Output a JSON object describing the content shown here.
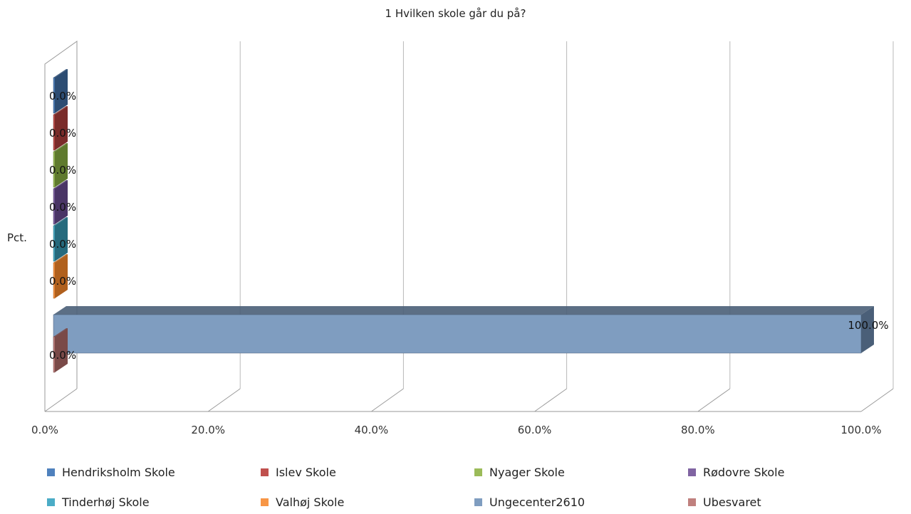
{
  "chart_data": {
    "type": "bar",
    "orientation": "horizontal",
    "three_d": true,
    "title": "1 Hvilken skole går du på?",
    "ylabel": "Pct.",
    "xlim": [
      0,
      100
    ],
    "x_ticks": [
      "0.0%",
      "20.0%",
      "40.0%",
      "60.0%",
      "80.0%",
      "100.0%"
    ],
    "grid": true,
    "legend_position": "bottom",
    "series": [
      {
        "name": "Hendriksholm Skole",
        "value": 0.0,
        "label": "0.0%",
        "color": "#4f81bd",
        "side": "#2d4d73"
      },
      {
        "name": "Islev Skole",
        "value": 0.0,
        "label": "0.0%",
        "color": "#c0504d",
        "side": "#7a2c2a"
      },
      {
        "name": "Nyager Skole",
        "value": 0.0,
        "label": "0.0%",
        "color": "#9bbb59",
        "side": "#5f7a2e"
      },
      {
        "name": "Rødovre Skole",
        "value": 0.0,
        "label": "0.0%",
        "color": "#8064a2",
        "side": "#4a3566"
      },
      {
        "name": "Tinderhøj Skole",
        "value": 0.0,
        "label": "0.0%",
        "color": "#4bacc6",
        "side": "#266a7d"
      },
      {
        "name": "Valhøj Skole",
        "value": 0.0,
        "label": "0.0%",
        "color": "#f79646",
        "side": "#b0601d"
      },
      {
        "name": "Ungecenter2610",
        "value": 100.0,
        "label": "100.0%",
        "color": "#7f9dc0",
        "side": "#4a5f78"
      },
      {
        "name": "Ubesvaret",
        "value": 0.0,
        "label": "0.0%",
        "color": "#c0807e",
        "side": "#7a4a48"
      }
    ]
  }
}
